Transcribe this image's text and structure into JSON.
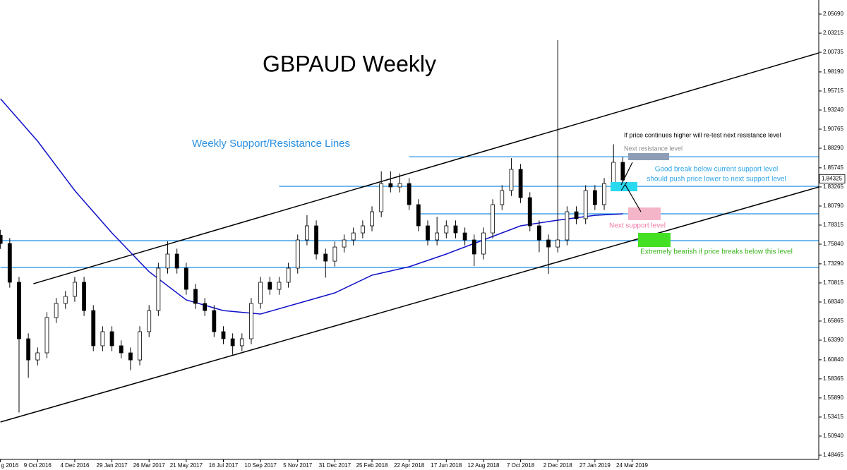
{
  "chart_data": {
    "type": "candlestick",
    "title": "GBPAUD Weekly",
    "x": [
      0,
      2,
      4,
      6,
      8,
      10,
      12,
      14,
      16,
      18,
      20,
      22,
      24,
      26,
      28,
      30,
      32,
      34,
      36,
      38,
      40,
      42,
      44,
      46,
      48,
      50,
      52,
      54,
      56,
      58,
      60,
      62,
      64,
      66,
      68,
      70,
      72,
      74,
      76,
      78,
      80,
      82,
      84,
      86,
      88,
      90,
      92,
      94,
      96,
      98,
      100,
      102,
      104,
      106,
      108,
      110,
      112,
      114,
      116,
      118,
      120,
      122,
      124,
      126,
      128,
      130,
      132,
      134
    ],
    "open": [
      1.77,
      1.7593,
      1.709,
      1.6357,
      1.6082,
      1.6174,
      1.6632,
      1.6815,
      1.6907,
      1.709,
      1.6723,
      1.6266,
      1.6449,
      1.6266,
      1.6174,
      1.6082,
      1.6449,
      1.6723,
      1.7273,
      1.7456,
      1.7273,
      1.6998,
      1.6815,
      1.6723,
      1.6449,
      1.6357,
      1.6266,
      1.6357,
      1.6815,
      1.709,
      1.6998,
      1.709,
      1.7273,
      1.7639,
      1.7822,
      1.7456,
      1.7364,
      1.7547,
      1.7639,
      1.773,
      1.7822,
      1.8005,
      1.8371,
      1.8326,
      1.8371,
      1.8097,
      1.7822,
      1.7639,
      1.773,
      1.7822,
      1.773,
      1.7639,
      1.7456,
      1.773,
      1.8097,
      1.828,
      1.8555,
      1.8188,
      1.7822,
      1.7639,
      1.7547,
      1.7639,
      1.8005,
      1.7914,
      1.828,
      1.8097,
      1.8371,
      1.8646
    ],
    "high": [
      1.777,
      1.7663,
      1.716,
      1.6427,
      1.6244,
      1.6702,
      1.6885,
      1.6977,
      1.716,
      1.716,
      1.6793,
      1.6519,
      1.6519,
      1.6336,
      1.6244,
      1.6519,
      1.6793,
      1.7343,
      1.762,
      1.7526,
      1.7343,
      1.7068,
      1.6885,
      1.6793,
      1.6519,
      1.6427,
      1.6427,
      1.6885,
      1.716,
      1.716,
      1.716,
      1.7343,
      1.7709,
      1.796,
      1.7892,
      1.7526,
      1.7617,
      1.7709,
      1.78,
      1.7892,
      1.8075,
      1.853,
      1.853,
      1.85,
      1.8441,
      1.8167,
      1.7892,
      1.794,
      1.7892,
      1.7892,
      1.78,
      1.7709,
      1.78,
      1.8167,
      1.835,
      1.87,
      1.8625,
      1.8258,
      1.7892,
      1.7709,
      2.023,
      1.8075,
      1.8075,
      1.835,
      1.835,
      1.8441,
      1.888,
      1.8716
    ],
    "low": [
      1.7523,
      1.702,
      1.54,
      1.585,
      1.6012,
      1.6104,
      1.6562,
      1.6745,
      1.6837,
      1.6653,
      1.6196,
      1.6196,
      1.6196,
      1.6104,
      1.595,
      1.6012,
      1.6379,
      1.6653,
      1.7203,
      1.7203,
      1.6928,
      1.6745,
      1.6653,
      1.6379,
      1.6287,
      1.615,
      1.6196,
      1.6287,
      1.6745,
      1.6928,
      1.6928,
      1.702,
      1.7203,
      1.7569,
      1.7386,
      1.715,
      1.7294,
      1.7477,
      1.7569,
      1.766,
      1.7752,
      1.7935,
      1.8256,
      1.8256,
      1.8027,
      1.7752,
      1.7569,
      1.7569,
      1.766,
      1.766,
      1.7569,
      1.73,
      1.7386,
      1.766,
      1.8027,
      1.821,
      1.8118,
      1.7752,
      1.748,
      1.72,
      1.7477,
      1.7569,
      1.7844,
      1.7844,
      1.8027,
      1.8027,
      1.8301,
      1.83
    ],
    "close": [
      1.7593,
      1.709,
      1.6357,
      1.6082,
      1.6174,
      1.6632,
      1.6815,
      1.6907,
      1.709,
      1.6723,
      1.6266,
      1.6449,
      1.6266,
      1.6174,
      1.6082,
      1.6449,
      1.6723,
      1.7273,
      1.7456,
      1.7273,
      1.6998,
      1.6815,
      1.6723,
      1.6449,
      1.6357,
      1.6266,
      1.6357,
      1.6815,
      1.709,
      1.6998,
      1.709,
      1.7273,
      1.7639,
      1.7822,
      1.7456,
      1.7364,
      1.7547,
      1.7639,
      1.773,
      1.7822,
      1.8005,
      1.8371,
      1.8326,
      1.8371,
      1.8097,
      1.7822,
      1.7639,
      1.773,
      1.7822,
      1.773,
      1.7639,
      1.7456,
      1.773,
      1.8097,
      1.828,
      1.8555,
      1.8188,
      1.7822,
      1.7639,
      1.7547,
      1.7639,
      1.8005,
      1.7914,
      1.828,
      1.8097,
      1.8371,
      1.8646,
      1.8417
    ],
    "moving_average": {
      "color": "#1010c8",
      "x": [
        0,
        8,
        16,
        24,
        32,
        40,
        48,
        56,
        64,
        72,
        80,
        88,
        96,
        104,
        112,
        120,
        128,
        134
      ],
      "values": [
        1.947,
        1.8921,
        1.828,
        1.773,
        1.7227,
        1.6861,
        1.6723,
        1.6678,
        1.6815,
        1.6952,
        1.7181,
        1.7291,
        1.7456,
        1.7639,
        1.7822,
        1.7895,
        1.7959,
        1.7978
      ]
    },
    "levels": {
      "color": "#1e8fe6",
      "values": [
        1.8719,
        1.8335,
        1.7978,
        1.763,
        1.7282
      ],
      "start_x": [
        88,
        60,
        90,
        0,
        0
      ]
    },
    "channel": {
      "color": "#000000",
      "x": [
        [
          7.1,
          176.2
        ],
        [
          0,
          176.2
        ]
      ],
      "values": [
        [
          1.7071,
          2.0065
        ],
        [
          1.5277,
          1.8326
        ]
      ]
    },
    "current_price": 1.84325,
    "annotations": [
      "Weekly Support/Resistance Lines",
      "If price continues higher will re-test next resistance level",
      "Next resistance level",
      "Good break below current support level",
      "should push price lower to next support level",
      "Next support level",
      "Extremely bearish if price breaks below this level"
    ],
    "xlim": [
      -0.1,
      176.2
    ],
    "ylim": [
      1.4755,
      2.0752
    ],
    "xticks": [
      {
        "value": 0,
        "label": "g 2016"
      },
      {
        "value": 8,
        "label": "9 Oct 2016"
      },
      {
        "value": 16,
        "label": "4 Dec 2016"
      },
      {
        "value": 24,
        "label": "29 Jan 2017"
      },
      {
        "value": 32,
        "label": "26 Mar 2017"
      },
      {
        "value": 40,
        "label": "21 May 2017"
      },
      {
        "value": 48,
        "label": "16 Jul 2017"
      },
      {
        "value": 56,
        "label": "10 Sep 2017"
      },
      {
        "value": 64,
        "label": "5 Nov 2017"
      },
      {
        "value": 72,
        "label": "31 Dec 2017"
      },
      {
        "value": 80,
        "label": "25 Feb 2018"
      },
      {
        "value": 88,
        "label": "22 Apr 2018"
      },
      {
        "value": 96,
        "label": "17 Jun 2018"
      },
      {
        "value": 104,
        "label": "12 Aug 2018"
      },
      {
        "value": 112,
        "label": "7 Oct 2018"
      },
      {
        "value": 120,
        "label": "2 Dec 2018"
      },
      {
        "value": 128,
        "label": "27 Jan 2019"
      },
      {
        "value": 136,
        "label": "24 Mar 2019"
      }
    ],
    "yticks": [
      {
        "value": 2.0569,
        "label": "2.05690"
      },
      2.03215,
      2.00735,
      {
        "value": 1.9819,
        "label": "1.98190"
      },
      1.95715,
      {
        "value": 1.9324,
        "label": "1.93240"
      },
      1.90765,
      {
        "value": 1.8829,
        "label": "1.88290"
      },
      1.85745,
      1.83265,
      {
        "value": 1.8079,
        "label": "1.80790"
      },
      1.78315,
      {
        "value": 1.7584,
        "label": "1.75840"
      },
      {
        "value": 1.7329,
        "label": "1.73290"
      },
      1.70815,
      {
        "value": 1.6834,
        "label": "1.68340"
      },
      1.65865,
      {
        "value": 1.6339,
        "label": "1.63390"
      },
      {
        "value": 1.6084,
        "label": "1.60840"
      },
      1.58365,
      {
        "value": 1.5589,
        "label": "1.55890"
      },
      1.53415,
      {
        "value": 1.5094,
        "label": "1.50940"
      },
      1.48465
    ]
  }
}
